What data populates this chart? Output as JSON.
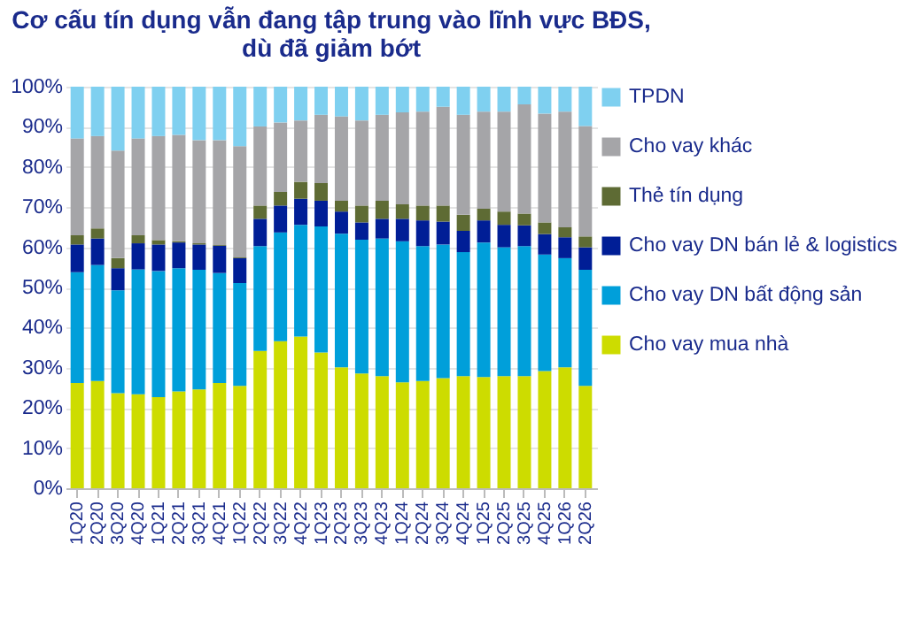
{
  "chart_data": {
    "type": "bar",
    "stacked": true,
    "title": "Cơ cấu tín dụng vẫn đang tập trung vào lĩnh vực BĐS, dù đã giảm bớt",
    "categories": [
      "1Q20",
      "2Q20",
      "3Q20",
      "4Q20",
      "1Q21",
      "2Q21",
      "3Q21",
      "4Q21",
      "1Q22",
      "2Q22",
      "3Q22",
      "4Q22",
      "1Q23",
      "2Q23",
      "3Q23",
      "4Q23",
      "1Q24",
      "2Q24",
      "3Q24",
      "4Q24",
      "1Q25",
      "2Q25",
      "3Q25",
      "4Q25",
      "1Q26",
      "2Q26"
    ],
    "series": [
      {
        "name": "Cho vay mua nhà",
        "color": "#cddc00",
        "values": [
          26.2,
          26.7,
          23.7,
          23.4,
          22.7,
          24.1,
          24.6,
          26.2,
          25.5,
          34.2,
          36.6,
          37.8,
          33.8,
          30.1,
          28.6,
          27.9,
          26.4,
          26.7,
          27.4,
          27.9,
          27.7,
          27.9,
          27.9,
          29.2,
          30.1,
          25.5
        ]
      },
      {
        "name": "Cho vay DN bất động sản",
        "color": "#009fda",
        "values": [
          27.6,
          28.9,
          25.6,
          31.1,
          31.4,
          30.7,
          29.8,
          27.4,
          25.6,
          26.1,
          27.1,
          27.8,
          31.4,
          33.3,
          33.3,
          34.3,
          35.1,
          33.6,
          33.3,
          30.9,
          33.5,
          32.1,
          32.4,
          29.0,
          27.2,
          28.9
        ]
      },
      {
        "name": "Cho vay DN bán lẻ & logistics",
        "color": "#001e96",
        "values": [
          6.9,
          6.6,
          5.5,
          6.5,
          6.6,
          6.4,
          6.3,
          6.8,
          6.2,
          6.8,
          6.7,
          6.5,
          6.4,
          5.5,
          4.3,
          4.9,
          5.6,
          6.4,
          5.7,
          5.3,
          5.5,
          5.6,
          5.2,
          5.1,
          5.2,
          5.6
        ]
      },
      {
        "name": "Thẻ tín dụng",
        "color": "#5e6b34",
        "values": [
          2.3,
          2.5,
          2.5,
          2.0,
          1.1,
          0.3,
          0.3,
          0.2,
          0.2,
          3.3,
          3.4,
          4.2,
          4.4,
          2.7,
          4.2,
          4.5,
          3.6,
          3.7,
          4.0,
          4.0,
          2.9,
          3.3,
          2.9,
          2.9,
          2.5,
          2.7
        ]
      },
      {
        "name": "Cho vay khác",
        "color": "#a5a5a8",
        "values": [
          24.1,
          23.0,
          26.8,
          24.1,
          25.9,
          26.5,
          25.7,
          26.1,
          27.7,
          19.7,
          17.3,
          15.3,
          17.0,
          21.0,
          21.2,
          21.4,
          22.9,
          23.4,
          24.6,
          24.9,
          24.2,
          24.9,
          27.2,
          27.1,
          28.8,
          27.5
        ]
      },
      {
        "name": "TPDN",
        "color": "#7fd0f0",
        "values": [
          12.9,
          12.3,
          15.9,
          12.9,
          12.3,
          12.0,
          13.3,
          13.3,
          14.8,
          9.9,
          8.9,
          8.4,
          7.0,
          7.4,
          8.4,
          7.0,
          6.4,
          6.2,
          5.0,
          7.0,
          6.2,
          6.2,
          4.4,
          6.7,
          6.2,
          9.8
        ]
      }
    ],
    "ylim": [
      0,
      100
    ],
    "yticks": [
      {
        "value": 0,
        "label": "0%"
      },
      {
        "value": 10,
        "label": "10%"
      },
      {
        "value": 20,
        "label": "20%"
      },
      {
        "value": 30,
        "label": "30%"
      },
      {
        "value": 40,
        "label": "40%"
      },
      {
        "value": 50,
        "label": "50%"
      },
      {
        "value": 60,
        "label": "60%"
      },
      {
        "value": 70,
        "label": "70%"
      },
      {
        "value": 80,
        "label": "80%"
      },
      {
        "value": 90,
        "label": "90%"
      },
      {
        "value": 100,
        "label": "100%"
      }
    ],
    "grid": "y",
    "legend": "right"
  }
}
